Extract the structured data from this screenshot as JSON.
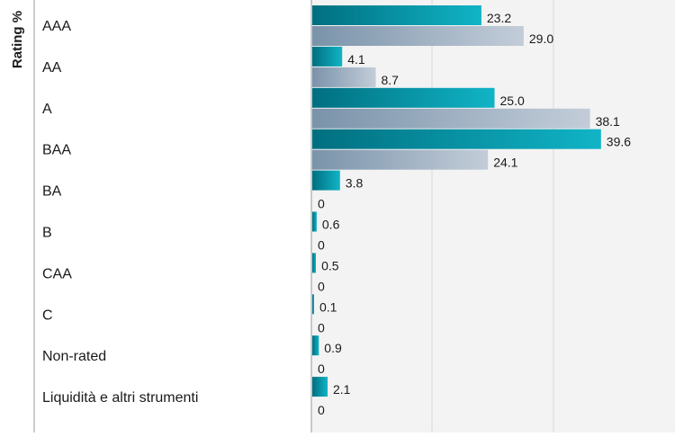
{
  "chart_data": {
    "type": "bar",
    "orientation": "horizontal",
    "ylabel": "Rating %",
    "categories": [
      "AAA",
      "AA",
      "A",
      "BAA",
      "BA",
      "B",
      "CAA",
      "C",
      "Non-rated",
      "Liquidità e altri strumenti"
    ],
    "series": [
      {
        "values": [
          23.2,
          4.1,
          25.0,
          39.6,
          3.8,
          0.6,
          0.5,
          0.1,
          0.9,
          2.1
        ],
        "labels": [
          "23.2",
          "4.1",
          "25.0",
          "39.6",
          "3.8",
          "0.6",
          "0.5",
          "0.1",
          "0.9",
          "2.1"
        ],
        "color": "#0aa3b8"
      },
      {
        "values": [
          29.0,
          8.7,
          38.1,
          24.1,
          0,
          0,
          0,
          0,
          0,
          0
        ],
        "labels": [
          "29.0",
          "8.7",
          "38.1",
          "24.1",
          "0",
          "0",
          "0",
          "0",
          "0",
          "0"
        ],
        "color": "#a7b6c8"
      }
    ],
    "xlim": [
      0,
      60
    ],
    "grid": true,
    "colors": {
      "plot_bg": "#f3f3f3",
      "grid": "#d8d8d8",
      "axis": "#9a9a9a",
      "text": "#1a1a1a"
    }
  }
}
